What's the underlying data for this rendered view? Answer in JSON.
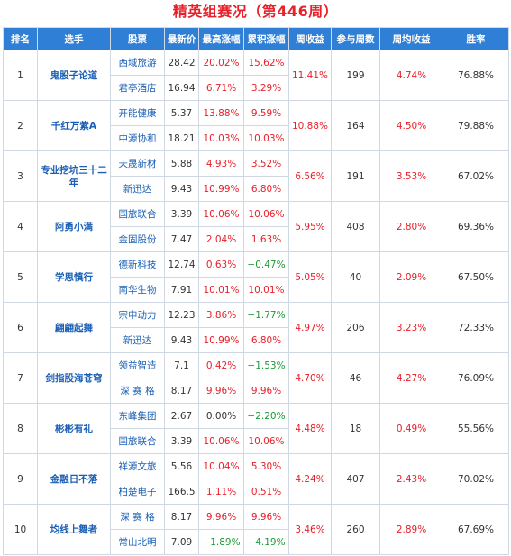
{
  "title": "精英组赛况（第446周）",
  "headers": [
    "排名",
    "选手",
    "股票",
    "最新价",
    "最高涨幅",
    "累积涨幅",
    "周收益",
    "参与周数",
    "周均收益",
    "胜率"
  ],
  "rows": [
    {
      "rank": "1",
      "player": "鬼股子论道",
      "weekly_return": "11.41%",
      "weeks": "199",
      "avg_return": "4.74%",
      "win_rate": "76.88%",
      "stocks": [
        {
          "name": "西域旅游",
          "price": "28.42",
          "max_gain": "20.02%",
          "max_color": "red",
          "cum_gain": "15.62%",
          "cum_color": "red"
        },
        {
          "name": "君亭酒店",
          "price": "16.94",
          "max_gain": "6.71%",
          "max_color": "red",
          "cum_gain": "3.29%",
          "cum_color": "red"
        }
      ]
    },
    {
      "rank": "2",
      "player": "千红万紫A",
      "weekly_return": "10.88%",
      "weeks": "164",
      "avg_return": "4.50%",
      "win_rate": "79.88%",
      "stocks": [
        {
          "name": "开能健康",
          "price": "5.37",
          "max_gain": "13.88%",
          "max_color": "red",
          "cum_gain": "9.59%",
          "cum_color": "red"
        },
        {
          "name": "中源协和",
          "price": "18.21",
          "max_gain": "10.03%",
          "max_color": "red",
          "cum_gain": "10.03%",
          "cum_color": "red"
        }
      ]
    },
    {
      "rank": "3",
      "player": "专业挖坑三十二年",
      "weekly_return": "6.56%",
      "weeks": "191",
      "avg_return": "3.53%",
      "win_rate": "67.02%",
      "stocks": [
        {
          "name": "天晟新材",
          "price": "5.88",
          "max_gain": "4.93%",
          "max_color": "red",
          "cum_gain": "3.52%",
          "cum_color": "red"
        },
        {
          "name": "新迅达",
          "price": "9.43",
          "max_gain": "10.99%",
          "max_color": "red",
          "cum_gain": "6.80%",
          "cum_color": "red"
        }
      ]
    },
    {
      "rank": "4",
      "player": "阿勇小满",
      "weekly_return": "5.95%",
      "weeks": "408",
      "avg_return": "2.80%",
      "win_rate": "69.36%",
      "stocks": [
        {
          "name": "国旅联合",
          "price": "3.39",
          "max_gain": "10.06%",
          "max_color": "red",
          "cum_gain": "10.06%",
          "cum_color": "red"
        },
        {
          "name": "金固股份",
          "price": "7.47",
          "max_gain": "2.04%",
          "max_color": "red",
          "cum_gain": "1.63%",
          "cum_color": "red"
        }
      ]
    },
    {
      "rank": "5",
      "player": "学思慎行",
      "weekly_return": "5.05%",
      "weeks": "40",
      "avg_return": "2.09%",
      "win_rate": "67.50%",
      "stocks": [
        {
          "name": "德新科技",
          "price": "12.74",
          "max_gain": "0.63%",
          "max_color": "red",
          "cum_gain": "−0.47%",
          "cum_color": "green"
        },
        {
          "name": "南华生物",
          "price": "7.91",
          "max_gain": "10.01%",
          "max_color": "red",
          "cum_gain": "10.01%",
          "cum_color": "red"
        }
      ]
    },
    {
      "rank": "6",
      "player": "翩翩起舞",
      "weekly_return": "4.97%",
      "weeks": "206",
      "avg_return": "3.23%",
      "win_rate": "72.33%",
      "stocks": [
        {
          "name": "宗申动力",
          "price": "12.23",
          "max_gain": "3.86%",
          "max_color": "red",
          "cum_gain": "−1.77%",
          "cum_color": "green"
        },
        {
          "name": "新迅达",
          "price": "9.43",
          "max_gain": "10.99%",
          "max_color": "red",
          "cum_gain": "6.80%",
          "cum_color": "red"
        }
      ]
    },
    {
      "rank": "7",
      "player": "剑指股海苍穹",
      "weekly_return": "4.70%",
      "weeks": "46",
      "avg_return": "4.27%",
      "win_rate": "76.09%",
      "stocks": [
        {
          "name": "领益智造",
          "price": "7.1",
          "max_gain": "0.42%",
          "max_color": "red",
          "cum_gain": "−1.53%",
          "cum_color": "green"
        },
        {
          "name": "深 赛 格",
          "price": "8.17",
          "max_gain": "9.96%",
          "max_color": "red",
          "cum_gain": "9.96%",
          "cum_color": "red"
        }
      ]
    },
    {
      "rank": "8",
      "player": "彬彬有礼",
      "weekly_return": "4.48%",
      "weeks": "18",
      "avg_return": "0.49%",
      "win_rate": "55.56%",
      "stocks": [
        {
          "name": "东峰集团",
          "price": "2.67",
          "max_gain": "0.00%",
          "max_color": "neutral",
          "cum_gain": "−2.20%",
          "cum_color": "green"
        },
        {
          "name": "国旅联合",
          "price": "3.39",
          "max_gain": "10.06%",
          "max_color": "red",
          "cum_gain": "10.06%",
          "cum_color": "red"
        }
      ]
    },
    {
      "rank": "9",
      "player": "金融日不落",
      "weekly_return": "4.24%",
      "weeks": "407",
      "avg_return": "2.43%",
      "win_rate": "70.02%",
      "stocks": [
        {
          "name": "祥源文旅",
          "price": "5.56",
          "max_gain": "10.04%",
          "max_color": "red",
          "cum_gain": "5.30%",
          "cum_color": "red"
        },
        {
          "name": "柏楚电子",
          "price": "166.5",
          "max_gain": "1.11%",
          "max_color": "red",
          "cum_gain": "0.51%",
          "cum_color": "red"
        }
      ]
    },
    {
      "rank": "10",
      "player": "均线上舞者",
      "weekly_return": "3.46%",
      "weeks": "260",
      "avg_return": "2.89%",
      "win_rate": "67.69%",
      "stocks": [
        {
          "name": "深 赛 格",
          "price": "8.17",
          "max_gain": "9.96%",
          "max_color": "red",
          "cum_gain": "9.96%",
          "cum_color": "red"
        },
        {
          "name": "常山北明",
          "price": "7.09",
          "max_gain": "−1.89%",
          "max_color": "green",
          "cum_gain": "−4.19%",
          "cum_color": "green"
        }
      ]
    }
  ]
}
